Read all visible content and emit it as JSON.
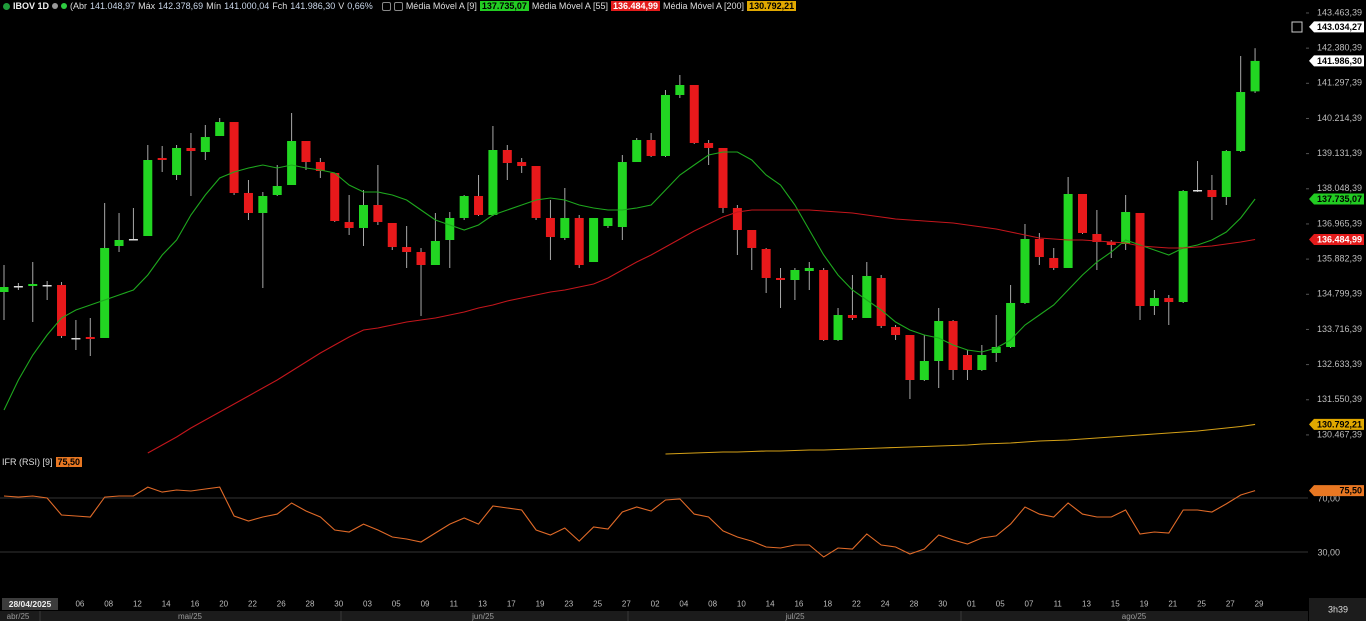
{
  "chart_data": {
    "type": "candlestick",
    "symbol": "IBOV 1D",
    "ohlc_names": {
      "open": "(Abr",
      "high": "Máx",
      "low": "Mín",
      "close": "Fch",
      "change": "V"
    },
    "ohlc_labels": {
      "open": "141.048,97",
      "high": "142.378,69",
      "low": "141.000,04",
      "close": "141.986,30"
    },
    "change": {
      "value": 0.66,
      "label": "0,66%"
    },
    "categories": [
      "28/04/2025",
      null,
      null,
      null,
      null,
      "06",
      null,
      "08",
      null,
      "12",
      null,
      "14",
      null,
      "16",
      null,
      "20",
      null,
      "22",
      null,
      "26",
      null,
      "28",
      null,
      "30",
      null,
      "03",
      null,
      "05",
      null,
      "09",
      null,
      "11",
      null,
      "13",
      null,
      "17",
      null,
      "19",
      null,
      "23",
      null,
      "25",
      null,
      "27",
      null,
      "02",
      null,
      "04",
      null,
      "08",
      null,
      "10",
      null,
      "14",
      null,
      "16",
      null,
      "18",
      null,
      "22",
      null,
      "24",
      null,
      "28",
      null,
      "30",
      null,
      "01",
      null,
      "05",
      null,
      "07",
      null,
      "11",
      null,
      "13",
      null,
      "15",
      null,
      "19",
      null,
      "21",
      null,
      "25",
      null,
      "27",
      null,
      "29"
    ],
    "months": [
      "abr/25",
      "mai/25",
      "jun/25",
      "jul/25",
      "ago/25"
    ],
    "time_left": "3h39",
    "open": [
      134869,
      135054,
      135054,
      135085,
      135085,
      133453,
      133483,
      133453,
      136286,
      136502,
      136594,
      138997,
      138473,
      139305,
      139181,
      139674,
      140105,
      137919,
      137303,
      137857,
      138165,
      139520,
      138873,
      138535,
      137025,
      136841,
      137549,
      136995,
      136255,
      136101,
      135701,
      136471,
      137149,
      137826,
      137241,
      139243,
      138873,
      138750,
      137149,
      136533,
      137149,
      135793,
      136902,
      136871,
      138873,
      139551,
      139058,
      140937,
      141245,
      139459,
      139305,
      137457,
      136779,
      136194,
      135301,
      135239,
      135516,
      135547,
      133391,
      134161,
      134069,
      135301,
      133791,
      133545,
      132159,
      132744,
      133976,
      132929,
      132467,
      132991,
      133175,
      134531,
      136502,
      135917,
      135609,
      137888,
      136656,
      136409,
      136348,
      137303,
      134438,
      134685,
      134561,
      138011,
      138011,
      137795,
      139212,
      141048.97
    ],
    "high": [
      135701,
      135147,
      135793,
      135208,
      135177,
      134007,
      134069,
      137611,
      137303,
      137457,
      139397,
      139366,
      139397,
      139767,
      140013,
      140229,
      140105,
      138319,
      137949,
      138781,
      140383,
      139520,
      138997,
      138535,
      137857,
      138011,
      138781,
      136995,
      136902,
      136225,
      137303,
      137333,
      137857,
      138473,
      139982,
      139397,
      138997,
      138750,
      137703,
      138073,
      137241,
      137149,
      137149,
      139089,
      139613,
      139767,
      141091,
      141553,
      141245,
      139551,
      139305,
      137549,
      136779,
      136225,
      135609,
      135609,
      135793,
      135609,
      134377,
      135393,
      135793,
      135393,
      133853,
      133545,
      133545,
      134377,
      134007,
      133083,
      133237,
      134161,
      135085,
      136964,
      136687,
      136225,
      138411,
      137888,
      137395,
      136471,
      137857,
      137303,
      134931,
      134777,
      138011,
      138904,
      138473,
      139243,
      142138,
      142378.69
    ],
    "low": [
      134007,
      134931,
      133945,
      134623,
      133453,
      133083,
      132898,
      133453,
      136101,
      136471,
      136594,
      138565,
      138319,
      137826,
      138935,
      139674,
      137857,
      137087,
      134993,
      137826,
      138165,
      138627,
      138381,
      137025,
      136625,
      136286,
      136933,
      136163,
      135609,
      134130,
      135701,
      135609,
      137087,
      137210,
      137210,
      138319,
      138535,
      137087,
      135855,
      136471,
      135609,
      135793,
      136841,
      136471,
      138873,
      139027,
      139027,
      140845,
      139428,
      138781,
      137303,
      136009,
      135547,
      134839,
      134377,
      134623,
      134931,
      133360,
      133360,
      134007,
      134069,
      133761,
      133391,
      131574,
      132128,
      131913,
      132159,
      132159,
      132436,
      132713,
      133145,
      134500,
      135701,
      135547,
      135609,
      136656,
      135547,
      135917,
      136163,
      134007,
      134161,
      133853,
      134531,
      137949,
      137087,
      137549,
      139181,
      141000.04
    ],
    "close": [
      135023,
      135054,
      135116,
      135085,
      133514,
      133453,
      133422,
      136225,
      136471,
      136502,
      138935,
      138935,
      139305,
      139212,
      139643,
      140105,
      137919,
      137303,
      137826,
      138134,
      139520,
      138873,
      138596,
      137056,
      136841,
      137549,
      137025,
      136255,
      136101,
      135701,
      136440,
      137149,
      137826,
      137241,
      139243,
      138843,
      138750,
      137149,
      136563,
      137149,
      135701,
      137149,
      137149,
      138873,
      139551,
      139058,
      140937,
      141245,
      139459,
      139305,
      137457,
      136779,
      136225,
      135301,
      135239,
      135547,
      135609,
      133391,
      134161,
      134069,
      135362,
      133822,
      133545,
      132159,
      132744,
      133976,
      132467,
      132467,
      132929,
      133175,
      134531,
      136502,
      135947,
      135609,
      137888,
      136687,
      136409,
      136317,
      137333,
      134438,
      134685,
      134561,
      137980,
      138011,
      137795,
      139212,
      141029,
      141986.3
    ],
    "colors": {
      "up": "#22d622",
      "down": "#e8191b",
      "flat": "#dddddd",
      "wick": "#a8a8a8"
    },
    "ylim": [
      129387,
      143863
    ],
    "yticks": [
      {
        "value": 143463.39,
        "label": "143.463,39"
      },
      {
        "value": 142380.39,
        "label": "142.380,39"
      },
      {
        "value": 141297.39,
        "label": "141.297,39"
      },
      {
        "value": 140214.39,
        "label": "140.214,39"
      },
      {
        "value": 139131.39,
        "label": "139.131,39"
      },
      {
        "value": 138048.39,
        "label": "138.048,39"
      },
      {
        "value": 136965.39,
        "label": "136.965,39"
      },
      {
        "value": 135882.39,
        "label": "135.882,39"
      },
      {
        "value": 134799.39,
        "label": "134.799,39"
      },
      {
        "value": 133716.39,
        "label": "133.716,39"
      },
      {
        "value": 132633.39,
        "label": "132.633,39"
      },
      {
        "value": 131550.39,
        "label": "131.550,39"
      },
      {
        "value": 130467.39,
        "label": "130.467,39"
      }
    ],
    "crosshair": {
      "value": 143034.27,
      "label": "143.034,27"
    },
    "series": [
      {
        "name": "Média Móvel A [9]",
        "color": "#1ea81e",
        "tag_color": "#22cc22",
        "tag_text": "#000000",
        "last_label": "137.735,07",
        "values": [
          131235,
          132159,
          132929,
          133545,
          134069,
          134315,
          134469,
          134623,
          134777,
          134931,
          135393,
          136009,
          136471,
          137241,
          137857,
          138381,
          138565,
          138689,
          138781,
          138689,
          138781,
          138689,
          138627,
          138535,
          138165,
          137949,
          137949,
          137857,
          137703,
          137395,
          137087,
          136933,
          136779,
          136933,
          137241,
          137395,
          137549,
          137703,
          137765,
          137703,
          137549,
          137457,
          137395,
          137395,
          137457,
          137549,
          138011,
          138473,
          138781,
          139089,
          139181,
          139181,
          138935,
          138473,
          138165,
          137549,
          136779,
          136009,
          135393,
          134931,
          134623,
          134315,
          133945,
          133699,
          133545,
          133453,
          133237,
          133083,
          133021,
          133145,
          133391,
          133853,
          134161,
          134469,
          134931,
          135393,
          135793,
          136101,
          136471,
          136317,
          136163,
          136009,
          136225,
          136317,
          136471,
          136717,
          137149,
          137735.07
        ]
      },
      {
        "name": "Média Móvel A [55]",
        "color": "#c4161c",
        "tag_color": "#e31b1b",
        "tag_text": "#ffffff",
        "last_label": "136.484,99",
        "values": [
          null,
          null,
          null,
          null,
          null,
          null,
          null,
          null,
          null,
          null,
          129911,
          130157,
          130403,
          130681,
          130927,
          131173,
          131420,
          131666,
          131913,
          132159,
          132436,
          132713,
          132991,
          133237,
          133483,
          133699,
          133761,
          133853,
          133945,
          134007,
          134069,
          134161,
          134253,
          134377,
          134469,
          134592,
          134685,
          134777,
          134869,
          134931,
          135023,
          135116,
          135301,
          135547,
          135793,
          136009,
          136255,
          136502,
          136748,
          136964,
          137179,
          137333,
          137395,
          137395,
          137395,
          137395,
          137395,
          137364,
          137333,
          137303,
          137241,
          137179,
          137118,
          137087,
          137056,
          137025,
          136995,
          136933,
          136871,
          136810,
          136717,
          136625,
          136533,
          136502,
          136471,
          136471,
          136440,
          136409,
          136379,
          136286,
          136255,
          136225,
          136225,
          136255,
          136286,
          136348,
          136409,
          136484.99
        ]
      },
      {
        "name": "Média Móvel A [200]",
        "color": "#d4a017",
        "tag_color": "#e0a800",
        "tag_text": "#000000",
        "last_label": "130.792,21",
        "values": [
          null,
          null,
          null,
          null,
          null,
          null,
          null,
          null,
          null,
          null,
          null,
          null,
          null,
          null,
          null,
          null,
          null,
          null,
          null,
          null,
          null,
          null,
          null,
          null,
          null,
          null,
          null,
          null,
          null,
          null,
          null,
          null,
          null,
          null,
          null,
          null,
          null,
          null,
          null,
          null,
          null,
          null,
          null,
          null,
          null,
          null,
          129880,
          129895,
          129911,
          129926,
          129941,
          129941,
          129957,
          129972,
          129972,
          129988,
          130003,
          130003,
          130018,
          130034,
          130049,
          130065,
          130080,
          130095,
          130111,
          130126,
          130142,
          130157,
          130188,
          130203,
          130219,
          130249,
          130280,
          130296,
          130311,
          130342,
          130373,
          130403,
          130434,
          130465,
          130496,
          130527,
          130557,
          130588,
          130634,
          130681,
          130727,
          130792.21
        ]
      }
    ],
    "rsi": {
      "name": "IFR (RSI) [9]",
      "color": "#e06a28",
      "tag_color": "#e87722",
      "last_label": "75,50",
      "ylim": [
        0,
        90
      ],
      "yticks": [
        {
          "value": 70,
          "label": "70,00"
        },
        {
          "value": 30,
          "label": "30,00"
        }
      ],
      "values": [
        71.5,
        70.7,
        71.5,
        70.0,
        57.4,
        56.7,
        55.9,
        70.7,
        71.5,
        71.5,
        78.1,
        74.4,
        75.9,
        75.2,
        76.7,
        78.1,
        56.7,
        53.0,
        55.9,
        58.1,
        66.3,
        60.4,
        55.9,
        46.3,
        44.8,
        50.7,
        46.3,
        41.1,
        39.6,
        37.4,
        44.1,
        50.7,
        55.2,
        50.7,
        64.1,
        62.6,
        61.1,
        46.3,
        42.6,
        47.8,
        38.1,
        48.5,
        47.0,
        59.6,
        63.3,
        60.4,
        68.5,
        69.3,
        58.1,
        55.9,
        45.6,
        41.1,
        38.1,
        33.7,
        33.0,
        35.2,
        35.2,
        26.3,
        33.0,
        32.2,
        43.3,
        35.2,
        33.7,
        28.5,
        32.2,
        42.6,
        38.9,
        35.9,
        40.4,
        41.9,
        50.7,
        63.3,
        58.1,
        55.9,
        66.3,
        58.1,
        55.9,
        55.9,
        61.1,
        43.3,
        44.8,
        44.1,
        61.1,
        61.1,
        59.6,
        65.6,
        72.2,
        75.5
      ]
    }
  }
}
